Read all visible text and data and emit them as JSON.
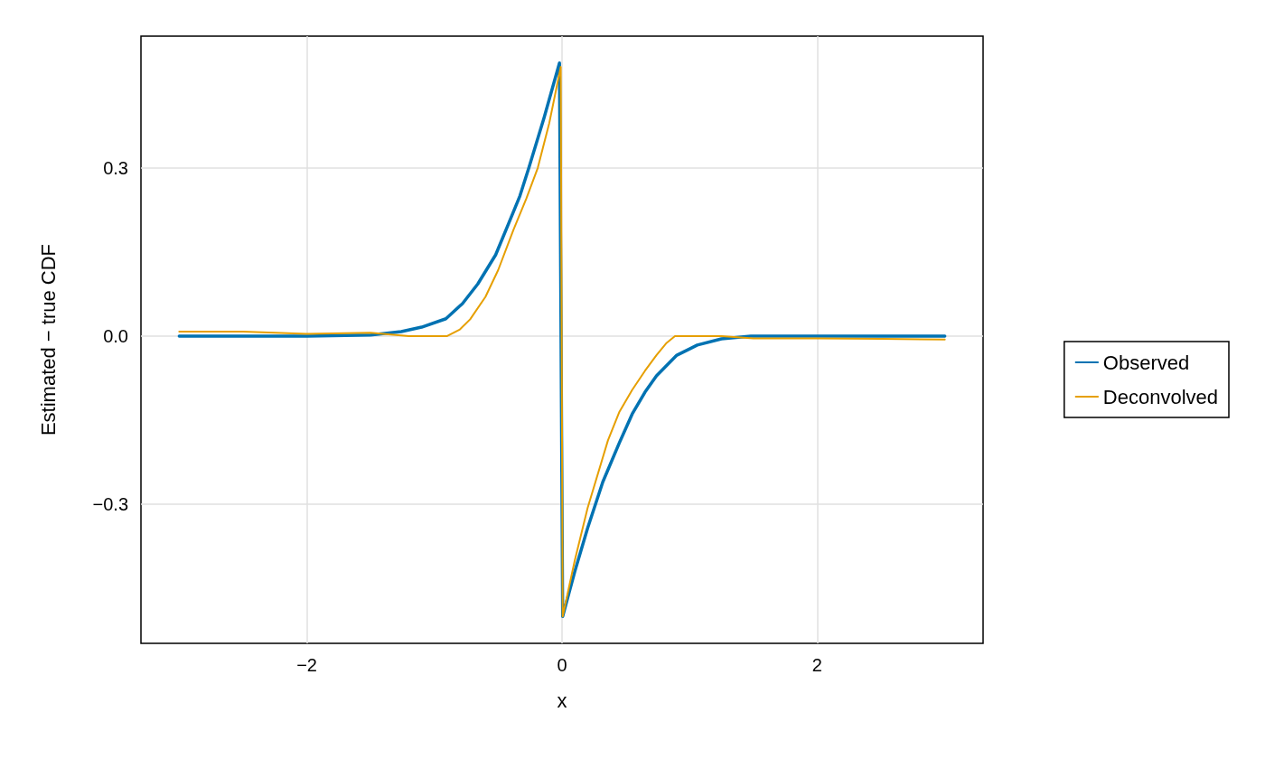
{
  "chart_data": {
    "type": "line",
    "xlabel": "x",
    "ylabel": "Estimated − true CDF",
    "xlim": [
      -3.3,
      3.3
    ],
    "ylim": [
      -0.548,
      0.535
    ],
    "xticks": [
      {
        "value": -2,
        "label": "−2"
      },
      0,
      2
    ],
    "yticks": [
      {
        "value": -0.3,
        "label": "−0.3"
      },
      {
        "value": 0,
        "label": "0.0"
      },
      0.3
    ],
    "grid": true,
    "legend": "right",
    "marker": "none",
    "line_style": "solid",
    "series": [
      {
        "name": "Observed",
        "color": "#0072b2",
        "x": [
          -3,
          -2,
          -1.5,
          -1.26,
          -1.1,
          -0.91,
          -0.78,
          -0.66,
          -0.52,
          -0.42,
          -0.33,
          -0.26,
          -0.14,
          -0.02,
          0.005,
          0.1,
          0.2,
          0.32,
          0.45,
          0.55,
          0.65,
          0.74,
          0.9,
          1.06,
          1.25,
          1.48,
          2,
          3
        ],
        "values": [
          0,
          0,
          0.002,
          0.008,
          0.016,
          0.031,
          0.058,
          0.093,
          0.145,
          0.2,
          0.25,
          0.3,
          0.39,
          0.487,
          -0.5,
          -0.42,
          -0.343,
          -0.26,
          -0.19,
          -0.139,
          -0.1,
          -0.071,
          -0.034,
          -0.016,
          -0.005,
          0,
          0,
          0
        ]
      },
      {
        "name": "Deconvolved",
        "color": "#e69f00",
        "x": [
          -3,
          -2.5,
          -2,
          -1.5,
          -1.2,
          -0.9,
          -0.8,
          -0.72,
          -0.6,
          -0.5,
          -0.38,
          -0.28,
          -0.19,
          -0.1,
          -0.01,
          0.005,
          0.1,
          0.2,
          0.36,
          0.45,
          0.55,
          0.65,
          0.74,
          0.82,
          0.885,
          1.25,
          1.5,
          2,
          2.5,
          3
        ],
        "values": [
          0.008,
          0.008,
          0.004,
          0.006,
          0,
          0,
          0.012,
          0.03,
          0.07,
          0.118,
          0.19,
          0.245,
          0.3,
          0.38,
          0.48,
          -0.5,
          -0.4,
          -0.307,
          -0.186,
          -0.135,
          -0.096,
          -0.062,
          -0.034,
          -0.012,
          0,
          0,
          -0.004,
          -0.004,
          -0.005,
          -0.006
        ]
      }
    ]
  }
}
